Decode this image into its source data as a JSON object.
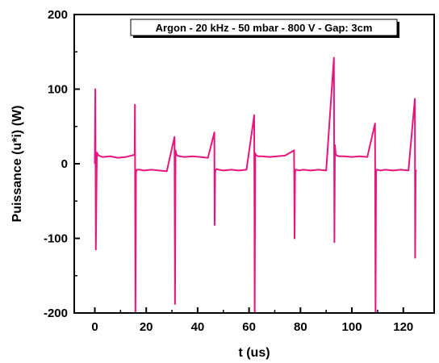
{
  "chart_data": {
    "type": "line",
    "title": "",
    "xlabel": "t (us)",
    "ylabel": "Puissance (u*i) (W)",
    "xlim": [
      -8,
      132
    ],
    "ylim": [
      -200,
      200
    ],
    "x_ticks": [
      0,
      20,
      40,
      60,
      80,
      100,
      120
    ],
    "y_ticks": [
      -200,
      -100,
      0,
      100,
      200
    ],
    "grid": false,
    "legend": {
      "placement": "top-center",
      "text": "Argon - 20 kHz - 50 mbar - 800 V - Gap: 3cm"
    },
    "colors": {
      "series": "#e8157f",
      "axis": "#000000"
    },
    "series": [
      {
        "x": [
          0,
          0.2,
          0.4,
          0.8,
          1.5,
          3,
          6,
          9,
          12,
          15.5,
          15.6,
          15.8,
          16.0,
          16.3,
          16.7,
          17.5,
          19,
          22,
          25,
          28,
          31.0,
          31.2,
          31.4,
          31.7,
          32.1,
          33,
          35,
          38,
          41,
          44,
          46.5,
          46.6,
          46.8,
          47.0,
          47.4,
          48.2,
          50,
          53,
          56,
          59,
          62.0,
          62.2,
          62.4,
          62.6,
          62.9,
          63.6,
          65,
          68,
          71,
          74,
          77.5,
          77.7,
          77.9,
          78.1,
          78.6,
          79.5,
          81,
          84,
          87,
          90,
          93.0,
          93.2,
          93.4,
          93.7,
          94.1,
          95,
          97,
          100,
          103,
          106,
          109.0,
          109.2,
          109.4,
          109.6,
          110,
          111,
          113,
          116,
          119,
          122,
          124.5,
          124.6,
          124.8,
          125.0
        ],
        "y": [
          0,
          100,
          -115,
          15,
          11,
          9,
          10,
          8,
          9,
          12,
          79,
          -200,
          -12,
          -8,
          -8,
          -8,
          -9,
          -8,
          -9,
          -10,
          36,
          -188,
          18,
          13,
          11,
          10,
          9,
          10,
          9,
          8,
          42,
          -82,
          -12,
          -8,
          -7,
          -8,
          -9,
          -8,
          -9,
          -8,
          65,
          -200,
          14,
          12,
          11,
          10,
          10,
          9,
          10,
          11,
          18,
          -100,
          -12,
          -8,
          -8,
          -9,
          -8,
          -9,
          -8,
          -9,
          142,
          -105,
          25,
          13,
          11,
          10,
          10,
          9,
          10,
          9,
          54,
          -200,
          -12,
          -8,
          -8,
          -9,
          -8,
          -9,
          -8,
          -9,
          87,
          -126,
          -12,
          -8
        ]
      }
    ]
  }
}
